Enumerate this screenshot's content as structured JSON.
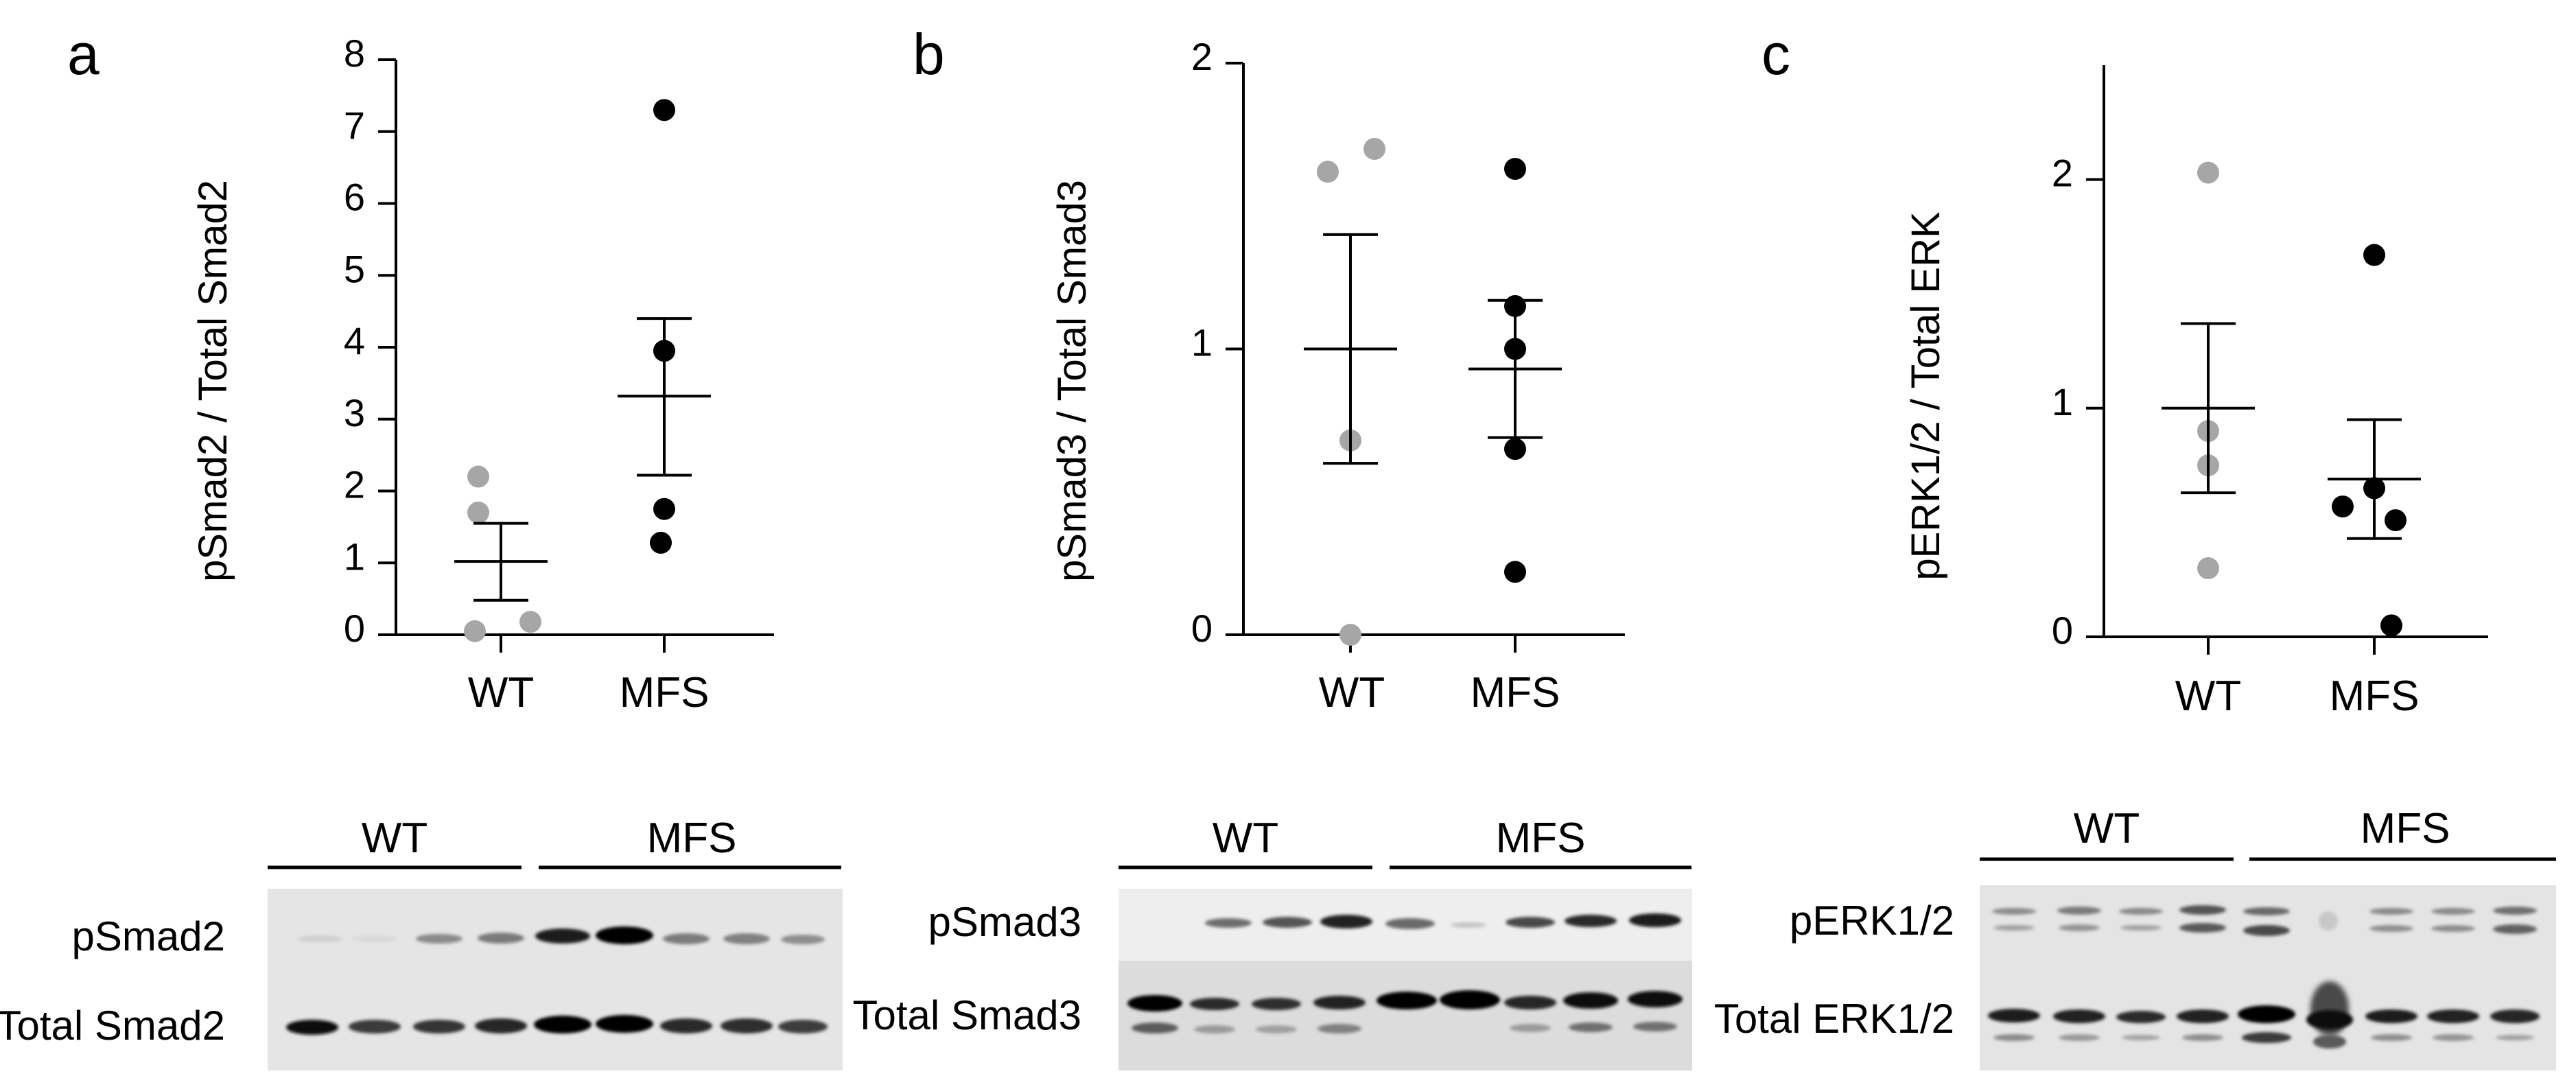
{
  "panels": [
    {
      "letter": "a",
      "ylabel": "pSmad2 / Total Smad2",
      "chart_data": {
        "type": "scatter",
        "categories": [
          "WT",
          "MFS"
        ],
        "ylim": [
          0,
          8
        ],
        "yticks": [
          "0",
          "1",
          "2",
          "3",
          "4",
          "5",
          "6",
          "7",
          "8"
        ],
        "series": [
          {
            "name": "WT",
            "color": "#a6a6a6",
            "values": [
              2.2,
              1.7,
              0.18,
              0.05
            ],
            "mean": 1.02,
            "sem_low": 0.48,
            "sem_high": 1.55
          },
          {
            "name": "MFS",
            "color": "#000000",
            "values": [
              7.3,
              3.95,
              1.75,
              1.28
            ],
            "mean": 3.32,
            "sem_low": 2.22,
            "sem_high": 4.4
          }
        ]
      },
      "blot": {
        "groups": [
          "WT",
          "MFS"
        ],
        "rows": [
          "pSmad2",
          "Total Smad2"
        ]
      }
    },
    {
      "letter": "b",
      "ylabel": "pSmad3 / Total Smad3",
      "chart_data": {
        "type": "scatter",
        "categories": [
          "WT",
          "MFS"
        ],
        "ylim": [
          0,
          2
        ],
        "yticks": [
          "0",
          "1",
          "2"
        ],
        "series": [
          {
            "name": "WT",
            "color": "#a6a6a6",
            "values": [
              1.62,
              1.7,
              0.68,
              0.0
            ],
            "mean": 1.0,
            "sem_low": 0.6,
            "sem_high": 1.4
          },
          {
            "name": "MFS",
            "color": "#000000",
            "values": [
              1.63,
              1.15,
              1.0,
              0.65,
              0.22
            ],
            "mean": 0.93,
            "sem_low": 0.69,
            "sem_high": 1.17
          }
        ]
      },
      "blot": {
        "groups": [
          "WT",
          "MFS"
        ],
        "rows": [
          "pSmad3",
          "Total Smad3"
        ]
      }
    },
    {
      "letter": "c",
      "ylabel": "pERK1/2 / Total ERK",
      "chart_data": {
        "type": "scatter",
        "categories": [
          "WT",
          "MFS"
        ],
        "ylim": [
          0,
          2.5
        ],
        "yticks": [
          "0",
          "1",
          "2"
        ],
        "series": [
          {
            "name": "WT",
            "color": "#a6a6a6",
            "values": [
              2.03,
              0.9,
              0.75,
              0.3
            ],
            "mean": 1.0,
            "sem_low": 0.63,
            "sem_high": 1.37
          },
          {
            "name": "MFS",
            "color": "#000000",
            "values": [
              1.67,
              0.65,
              0.57,
              0.51,
              0.05
            ],
            "mean": 0.69,
            "sem_low": 0.43,
            "sem_high": 0.95
          }
        ]
      },
      "blot": {
        "groups": [
          "WT",
          "MFS"
        ],
        "rows": [
          "pERK1/2",
          "Total ERK1/2"
        ]
      }
    }
  ]
}
